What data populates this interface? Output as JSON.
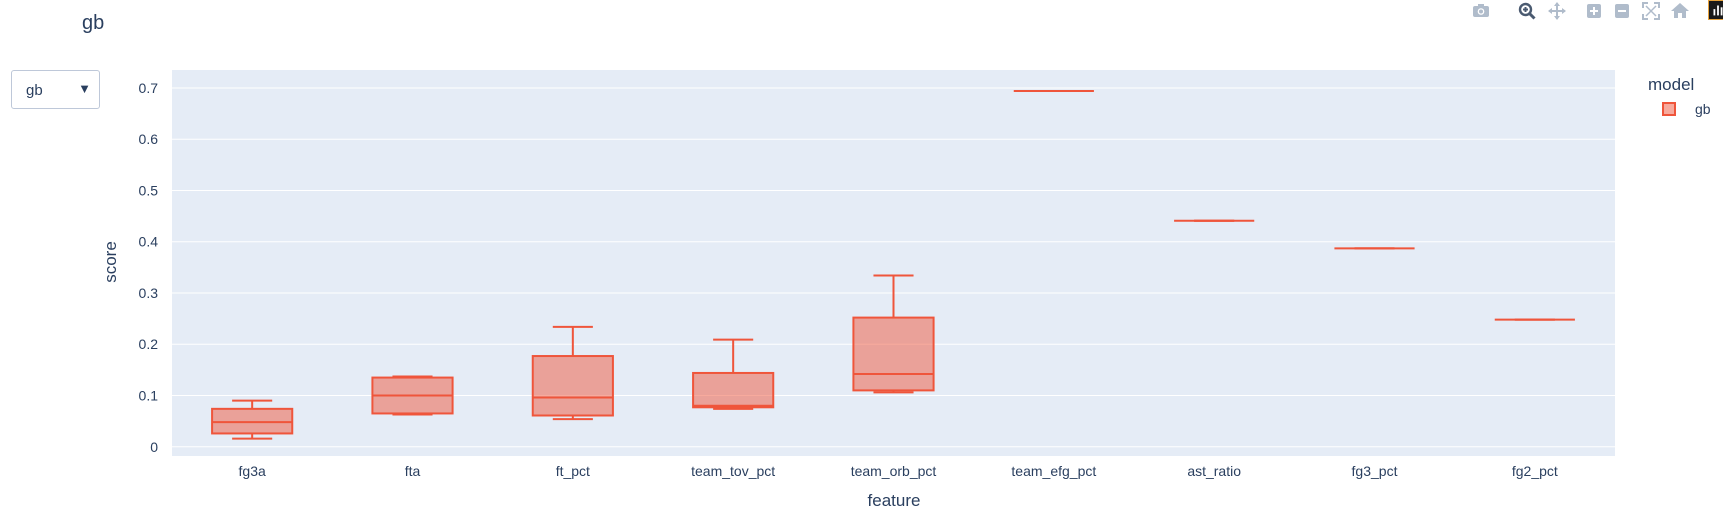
{
  "title": "gb",
  "dropdown": {
    "value": "gb"
  },
  "modebar": {
    "icons": [
      "camera-icon",
      "zoom-icon",
      "pan-icon",
      "zoom-in-icon",
      "zoom-out-icon",
      "autoscale-icon",
      "home-icon",
      "logo-icon"
    ]
  },
  "legend": {
    "title": "model",
    "items": [
      {
        "label": "gb",
        "color": "#EF553B"
      }
    ]
  },
  "chart_data": {
    "type": "box",
    "xlabel": "feature",
    "ylabel": "score",
    "ylim": [
      -0.018,
      0.735
    ],
    "grid": true,
    "legend_position": "right",
    "yticks": [
      {
        "value": 0,
        "label": "0"
      },
      {
        "value": 0.1,
        "label": "0.1"
      },
      {
        "value": 0.2,
        "label": "0.2"
      },
      {
        "value": 0.3,
        "label": "0.3"
      },
      {
        "value": 0.4,
        "label": "0.4"
      },
      {
        "value": 0.5,
        "label": "0.5"
      },
      {
        "value": 0.6,
        "label": "0.6"
      },
      {
        "value": 0.7,
        "label": "0.7"
      }
    ],
    "categories": [
      "fg3a",
      "fta",
      "ft_pct",
      "team_tov_pct",
      "team_orb_pct",
      "team_efg_pct",
      "ast_ratio",
      "fg3_pct",
      "fg2_pct"
    ],
    "series": [
      {
        "name": "gb",
        "color": "#EF553B",
        "boxes": [
          {
            "min": 0.016,
            "q1": 0.026,
            "median": 0.048,
            "q3": 0.074,
            "max": 0.09
          },
          {
            "min": 0.063,
            "q1": 0.065,
            "median": 0.1,
            "q3": 0.135,
            "max": 0.137
          },
          {
            "min": 0.054,
            "q1": 0.061,
            "median": 0.096,
            "q3": 0.177,
            "max": 0.234
          },
          {
            "min": 0.074,
            "q1": 0.077,
            "median": 0.08,
            "q3": 0.144,
            "max": 0.209
          },
          {
            "min": 0.106,
            "q1": 0.11,
            "median": 0.142,
            "q3": 0.252,
            "max": 0.334
          },
          {
            "min": 0.694,
            "q1": 0.694,
            "median": 0.694,
            "q3": 0.694,
            "max": 0.694
          },
          {
            "min": 0.441,
            "q1": 0.441,
            "median": 0.441,
            "q3": 0.441,
            "max": 0.441
          },
          {
            "min": 0.387,
            "q1": 0.387,
            "median": 0.387,
            "q3": 0.387,
            "max": 0.387
          },
          {
            "min": 0.248,
            "q1": 0.248,
            "median": 0.248,
            "q3": 0.248,
            "max": 0.248
          }
        ]
      }
    ]
  }
}
